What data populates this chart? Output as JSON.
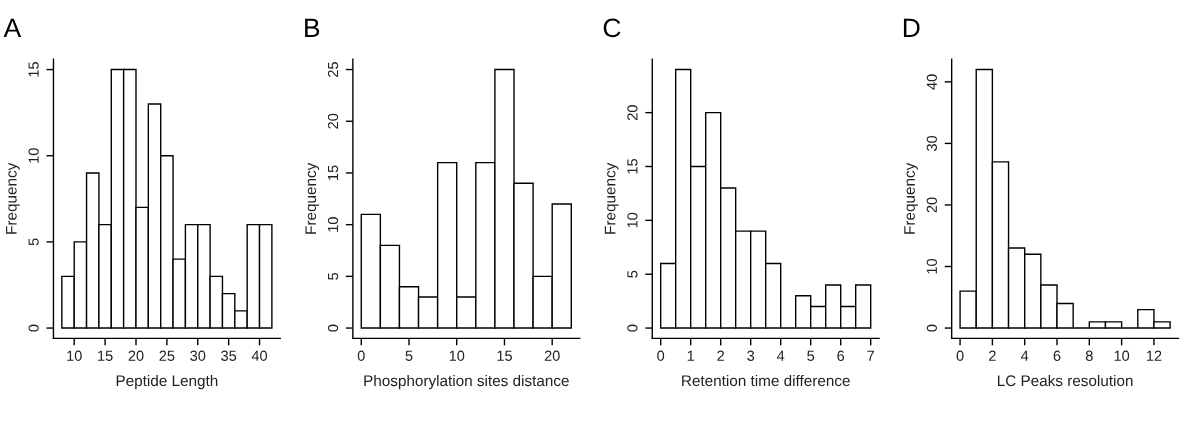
{
  "chart_data": [
    {
      "type": "histogram",
      "title": "A",
      "xlabel": "Peptide Length",
      "ylabel": "Frequency",
      "bins": [
        8,
        10,
        12,
        14,
        16,
        18,
        20,
        22,
        24,
        26,
        28,
        30,
        32,
        34,
        36,
        38,
        40,
        42
      ],
      "values": [
        3,
        5,
        9,
        6,
        15,
        15,
        7,
        13,
        10,
        4,
        6,
        6,
        3,
        2,
        1,
        6,
        6
      ],
      "xlim": [
        6.64,
        43.36
      ],
      "ylim": [
        -0.6,
        15.6
      ],
      "xticks": [
        10,
        15,
        20,
        25,
        30,
        35,
        40
      ],
      "yticks": [
        0,
        5,
        10,
        15
      ]
    },
    {
      "type": "histogram",
      "title": "B",
      "xlabel": "Phosphorylation sites distance",
      "ylabel": "Frequency",
      "bins": [
        0,
        2,
        4,
        6,
        8,
        10,
        12,
        14,
        16,
        18,
        20,
        22
      ],
      "values": [
        11,
        8,
        4,
        3,
        16,
        3,
        16,
        25,
        14,
        5,
        12
      ],
      "xlim": [
        -0.88,
        22.88
      ],
      "ylim": [
        -1,
        26
      ],
      "xticks": [
        0,
        5,
        10,
        15,
        20
      ],
      "yticks": [
        0,
        5,
        10,
        15,
        20,
        25
      ]
    },
    {
      "type": "histogram",
      "title": "C",
      "xlabel": "Retention time difference",
      "ylabel": "Frequency",
      "bins": [
        0,
        0.5,
        1,
        1.5,
        2,
        2.5,
        3,
        3.5,
        4,
        4.5,
        5,
        5.5,
        6,
        6.5,
        7
      ],
      "values": [
        6,
        24,
        15,
        20,
        13,
        9,
        9,
        6,
        0,
        3,
        2,
        4,
        2,
        4
      ],
      "xlim": [
        -0.28,
        7.28
      ],
      "ylim": [
        -0.96,
        24.96
      ],
      "xticks": [
        0,
        1,
        2,
        3,
        4,
        5,
        6,
        7
      ],
      "yticks": [
        0,
        5,
        10,
        15,
        20
      ]
    },
    {
      "type": "histogram",
      "title": "D",
      "xlabel": "LC Peaks resolution",
      "ylabel": "Frequency",
      "bins": [
        0,
        1,
        2,
        3,
        4,
        5,
        6,
        7,
        8,
        9,
        10,
        11,
        12,
        13
      ],
      "values": [
        6,
        42,
        27,
        13,
        12,
        7,
        4,
        0,
        1,
        1,
        0,
        3,
        1
      ],
      "xlim": [
        -0.52,
        13.52
      ],
      "ylim": [
        -1.68,
        43.68
      ],
      "xticks": [
        0,
        2,
        4,
        6,
        8,
        10,
        12
      ],
      "yticks": [
        0,
        10,
        20,
        30,
        40
      ]
    }
  ]
}
